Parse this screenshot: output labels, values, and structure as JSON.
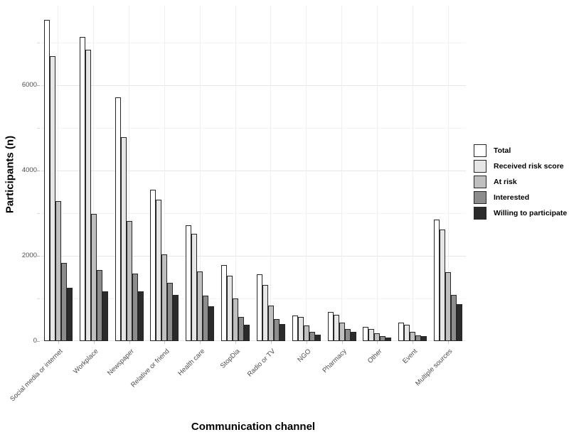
{
  "axes": {
    "y_title": "Participants (n)",
    "x_title": "Communication channel",
    "y_tick_values": [
      0,
      2000,
      4000,
      6000
    ],
    "y_minor_values": [
      1000,
      3000,
      5000,
      7000
    ]
  },
  "legend": {
    "position": "right",
    "items": [
      {
        "label": "Total",
        "color": "#ffffff"
      },
      {
        "label": "Received risk score",
        "color": "#e6e6e6"
      },
      {
        "label": "At risk",
        "color": "#bfbfbf"
      },
      {
        "label": "Interested",
        "color": "#8c8c8c"
      },
      {
        "label": "Willing to participate",
        "color": "#2b2b2b"
      }
    ]
  },
  "chart_data": {
    "type": "bar",
    "title": "",
    "xlabel": "Communication channel",
    "ylabel": "Participants (n)",
    "ylim": [
      0,
      7870
    ],
    "grid": true,
    "legend_position": "right",
    "bar_outline_color": "#262626",
    "categories": [
      "Social media or internet",
      "Workplace",
      "Newspaper",
      "Relative or friend",
      "Health care",
      "StopDia",
      "Radio or TV",
      "NGO",
      "Pharmacy",
      "Other",
      "Event",
      "Multiple sources"
    ],
    "series": [
      {
        "name": "Total",
        "color": "#ffffff",
        "values": [
          7530,
          7140,
          5720,
          3550,
          2720,
          1790,
          1560,
          600,
          680,
          330,
          430,
          2850
        ]
      },
      {
        "name": "Received risk score",
        "color": "#e6e6e6",
        "values": [
          6680,
          6830,
          4780,
          3310,
          2520,
          1540,
          1310,
          570,
          610,
          280,
          390,
          2610
        ]
      },
      {
        "name": "At risk",
        "color": "#bfbfbf",
        "values": [
          3290,
          2990,
          2810,
          2030,
          1640,
          1000,
          830,
          360,
          430,
          190,
          210,
          1610
        ]
      },
      {
        "name": "Interested",
        "color": "#8c8c8c",
        "values": [
          1830,
          1660,
          1580,
          1360,
          1070,
          570,
          510,
          220,
          280,
          120,
          140,
          1080
        ]
      },
      {
        "name": "Willing to participate",
        "color": "#2b2b2b",
        "values": [
          1250,
          1170,
          1170,
          1080,
          810,
          380,
          400,
          150,
          220,
          90,
          120,
          870
        ]
      }
    ]
  }
}
